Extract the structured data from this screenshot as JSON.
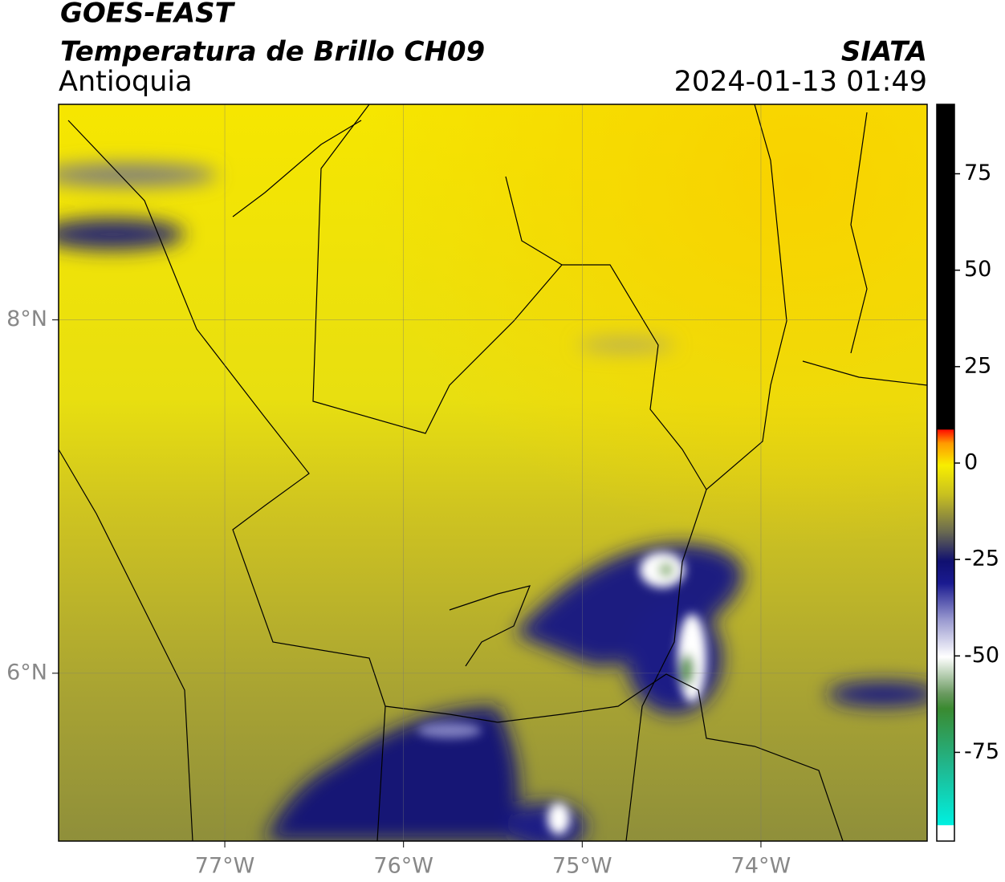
{
  "header": {
    "title": "GOES-EAST",
    "subtitle": "Temperatura de Brillo CH09",
    "region": "Antioquia",
    "source": "SIATA",
    "datetime": "2024-01-13 01:49"
  },
  "map": {
    "xlim": [
      -77.93,
      -73.07
    ],
    "ylim": [
      5.05,
      9.22
    ],
    "xticks": [
      {
        "value": -77,
        "label": "77°W"
      },
      {
        "value": -76,
        "label": "76°W"
      },
      {
        "value": -75,
        "label": "75°W"
      },
      {
        "value": -74,
        "label": "74°W"
      }
    ],
    "yticks": [
      {
        "value": 8,
        "label": "8°N"
      },
      {
        "value": 6,
        "label": "6°N"
      }
    ]
  },
  "colorbar": {
    "lim": [
      -98,
      93
    ],
    "ticks": [
      75,
      50,
      25,
      0,
      -25,
      -50,
      -75
    ]
  }
}
